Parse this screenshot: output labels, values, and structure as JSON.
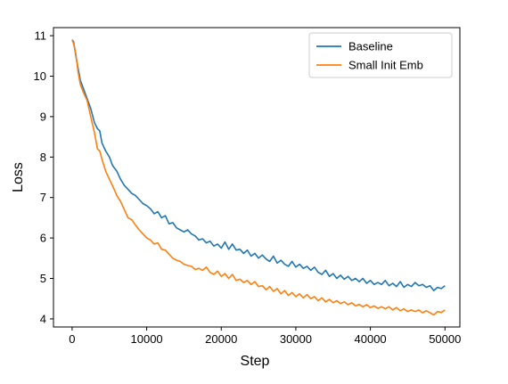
{
  "chart_data": {
    "type": "line",
    "xlabel": "Step",
    "ylabel": "Loss",
    "xlim": [
      -2500,
      52000
    ],
    "ylim": [
      3.8,
      11.2
    ],
    "x_ticks": [
      0,
      10000,
      20000,
      30000,
      40000,
      50000
    ],
    "x_tick_labels": [
      "0",
      "10000",
      "20000",
      "30000",
      "40000",
      "50000"
    ],
    "y_ticks": [
      4,
      5,
      6,
      7,
      8,
      9,
      10,
      11
    ],
    "y_tick_labels": [
      "4",
      "5",
      "6",
      "7",
      "8",
      "9",
      "10",
      "11"
    ],
    "grid": false,
    "legend_position": "top-right",
    "series": [
      {
        "name": "Baseline",
        "color": "#1f77b4",
        "points": [
          [
            0,
            10.9
          ],
          [
            200,
            10.85
          ],
          [
            500,
            10.5
          ],
          [
            800,
            10.2
          ],
          [
            1100,
            9.9
          ],
          [
            1500,
            9.7
          ],
          [
            2000,
            9.45
          ],
          [
            2500,
            9.2
          ],
          [
            3000,
            8.85
          ],
          [
            3400,
            8.7
          ],
          [
            3700,
            8.65
          ],
          [
            4000,
            8.35
          ],
          [
            4500,
            8.15
          ],
          [
            5000,
            8.0
          ],
          [
            5400,
            7.8
          ],
          [
            6000,
            7.65
          ],
          [
            6500,
            7.45
          ],
          [
            7000,
            7.3
          ],
          [
            7500,
            7.2
          ],
          [
            8000,
            7.1
          ],
          [
            8500,
            7.05
          ],
          [
            9000,
            6.95
          ],
          [
            9500,
            6.85
          ],
          [
            10000,
            6.8
          ],
          [
            10500,
            6.72
          ],
          [
            11000,
            6.6
          ],
          [
            11500,
            6.65
          ],
          [
            12000,
            6.5
          ],
          [
            12500,
            6.55
          ],
          [
            13000,
            6.35
          ],
          [
            13500,
            6.38
          ],
          [
            14000,
            6.25
          ],
          [
            14500,
            6.2
          ],
          [
            15000,
            6.15
          ],
          [
            15500,
            6.2
          ],
          [
            16000,
            6.1
          ],
          [
            16500,
            6.05
          ],
          [
            17000,
            5.95
          ],
          [
            17500,
            5.98
          ],
          [
            18000,
            5.88
          ],
          [
            18500,
            5.92
          ],
          [
            19000,
            5.8
          ],
          [
            19500,
            5.85
          ],
          [
            20000,
            5.75
          ],
          [
            20500,
            5.9
          ],
          [
            21000,
            5.72
          ],
          [
            21500,
            5.85
          ],
          [
            22000,
            5.7
          ],
          [
            22500,
            5.72
          ],
          [
            23000,
            5.62
          ],
          [
            23500,
            5.7
          ],
          [
            24000,
            5.55
          ],
          [
            24500,
            5.62
          ],
          [
            25000,
            5.5
          ],
          [
            25500,
            5.58
          ],
          [
            26000,
            5.48
          ],
          [
            26500,
            5.42
          ],
          [
            27000,
            5.55
          ],
          [
            27500,
            5.38
          ],
          [
            28000,
            5.45
          ],
          [
            28500,
            5.35
          ],
          [
            29000,
            5.3
          ],
          [
            29500,
            5.42
          ],
          [
            30000,
            5.28
          ],
          [
            30500,
            5.35
          ],
          [
            31000,
            5.25
          ],
          [
            31500,
            5.3
          ],
          [
            32000,
            5.2
          ],
          [
            32500,
            5.28
          ],
          [
            33000,
            5.15
          ],
          [
            33500,
            5.1
          ],
          [
            34000,
            5.2
          ],
          [
            34500,
            5.05
          ],
          [
            35000,
            5.12
          ],
          [
            35500,
            5.0
          ],
          [
            36000,
            5.08
          ],
          [
            36500,
            4.98
          ],
          [
            37000,
            5.05
          ],
          [
            37500,
            4.95
          ],
          [
            38000,
            5.0
          ],
          [
            38500,
            4.92
          ],
          [
            39000,
            5.0
          ],
          [
            39500,
            4.88
          ],
          [
            40000,
            4.95
          ],
          [
            40500,
            4.85
          ],
          [
            41000,
            4.9
          ],
          [
            41500,
            4.85
          ],
          [
            42000,
            4.95
          ],
          [
            42500,
            4.82
          ],
          [
            43000,
            4.88
          ],
          [
            43500,
            4.8
          ],
          [
            44000,
            4.92
          ],
          [
            44500,
            4.78
          ],
          [
            45000,
            4.85
          ],
          [
            45500,
            4.8
          ],
          [
            46000,
            4.9
          ],
          [
            46500,
            4.82
          ],
          [
            47000,
            4.85
          ],
          [
            47500,
            4.78
          ],
          [
            48000,
            4.82
          ],
          [
            48500,
            4.7
          ],
          [
            49000,
            4.78
          ],
          [
            49500,
            4.75
          ],
          [
            50000,
            4.82
          ]
        ]
      },
      {
        "name": "Small Init Emb",
        "color": "#ff7f0e",
        "points": [
          [
            0,
            10.9
          ],
          [
            200,
            10.8
          ],
          [
            500,
            10.55
          ],
          [
            800,
            10.1
          ],
          [
            1100,
            9.8
          ],
          [
            1500,
            9.6
          ],
          [
            2000,
            9.4
          ],
          [
            2500,
            9.0
          ],
          [
            3000,
            8.6
          ],
          [
            3400,
            8.2
          ],
          [
            3700,
            8.15
          ],
          [
            4000,
            7.95
          ],
          [
            4500,
            7.65
          ],
          [
            5000,
            7.45
          ],
          [
            5400,
            7.3
          ],
          [
            6000,
            7.05
          ],
          [
            6500,
            6.9
          ],
          [
            7000,
            6.7
          ],
          [
            7500,
            6.5
          ],
          [
            8000,
            6.45
          ],
          [
            8500,
            6.32
          ],
          [
            9000,
            6.2
          ],
          [
            9500,
            6.1
          ],
          [
            10000,
            6.0
          ],
          [
            10500,
            5.95
          ],
          [
            11000,
            5.85
          ],
          [
            11500,
            5.88
          ],
          [
            12000,
            5.72
          ],
          [
            12500,
            5.7
          ],
          [
            13000,
            5.6
          ],
          [
            13500,
            5.5
          ],
          [
            14000,
            5.45
          ],
          [
            14500,
            5.42
          ],
          [
            15000,
            5.35
          ],
          [
            15500,
            5.32
          ],
          [
            16000,
            5.3
          ],
          [
            16500,
            5.22
          ],
          [
            17000,
            5.25
          ],
          [
            17500,
            5.2
          ],
          [
            18000,
            5.28
          ],
          [
            18500,
            5.15
          ],
          [
            19000,
            5.1
          ],
          [
            19500,
            5.18
          ],
          [
            20000,
            5.05
          ],
          [
            20500,
            5.12
          ],
          [
            21000,
            5.0
          ],
          [
            21500,
            5.1
          ],
          [
            22000,
            4.95
          ],
          [
            22500,
            4.98
          ],
          [
            23000,
            4.9
          ],
          [
            23500,
            4.95
          ],
          [
            24000,
            4.85
          ],
          [
            24500,
            4.92
          ],
          [
            25000,
            4.8
          ],
          [
            25500,
            4.82
          ],
          [
            26000,
            4.72
          ],
          [
            26500,
            4.8
          ],
          [
            27000,
            4.68
          ],
          [
            27500,
            4.75
          ],
          [
            28000,
            4.62
          ],
          [
            28500,
            4.7
          ],
          [
            29000,
            4.58
          ],
          [
            29500,
            4.65
          ],
          [
            30000,
            4.55
          ],
          [
            30500,
            4.62
          ],
          [
            31000,
            4.52
          ],
          [
            31500,
            4.6
          ],
          [
            32000,
            4.5
          ],
          [
            32500,
            4.55
          ],
          [
            33000,
            4.45
          ],
          [
            33500,
            4.52
          ],
          [
            34000,
            4.42
          ],
          [
            34500,
            4.48
          ],
          [
            35000,
            4.4
          ],
          [
            35500,
            4.45
          ],
          [
            36000,
            4.38
          ],
          [
            36500,
            4.42
          ],
          [
            37000,
            4.35
          ],
          [
            37500,
            4.4
          ],
          [
            38000,
            4.32
          ],
          [
            38500,
            4.36
          ],
          [
            39000,
            4.3
          ],
          [
            39500,
            4.35
          ],
          [
            40000,
            4.28
          ],
          [
            40500,
            4.32
          ],
          [
            41000,
            4.26
          ],
          [
            41500,
            4.3
          ],
          [
            42000,
            4.25
          ],
          [
            42500,
            4.3
          ],
          [
            43000,
            4.22
          ],
          [
            43500,
            4.28
          ],
          [
            44000,
            4.2
          ],
          [
            44500,
            4.25
          ],
          [
            45000,
            4.18
          ],
          [
            45500,
            4.22
          ],
          [
            46000,
            4.18
          ],
          [
            46500,
            4.22
          ],
          [
            47000,
            4.15
          ],
          [
            47500,
            4.2
          ],
          [
            48000,
            4.15
          ],
          [
            48500,
            4.1
          ],
          [
            49000,
            4.18
          ],
          [
            49500,
            4.16
          ],
          [
            50000,
            4.22
          ]
        ]
      }
    ]
  }
}
